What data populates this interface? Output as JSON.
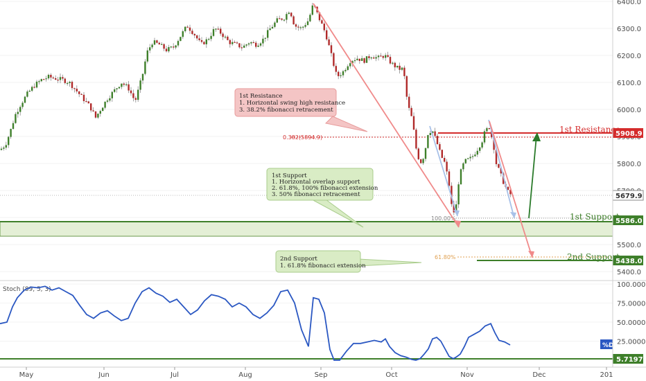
{
  "chart_data": [
    {
      "type": "candlestick",
      "ylim": [
        5380,
        6410
      ],
      "y_ticks": [
        "6400.0",
        "6300.0",
        "6200.0",
        "6100.0",
        "6000.0",
        "5900.0",
        "5800.0",
        "5700.0",
        "5600.0",
        "5500.0",
        "5400.0"
      ],
      "x_ticks": [
        "May",
        "Jun",
        "Jul",
        "Aug",
        "Sep",
        "Oct",
        "Nov",
        "Dec",
        "201"
      ],
      "price_path": [
        [
          0,
          5850
        ],
        [
          8,
          5870
        ],
        [
          15,
          5920
        ],
        [
          22,
          5980
        ],
        [
          30,
          6020
        ],
        [
          40,
          6060
        ],
        [
          50,
          6090
        ],
        [
          60,
          6110
        ],
        [
          70,
          6120
        ],
        [
          80,
          6115
        ],
        [
          90,
          6110
        ],
        [
          100,
          6100
        ],
        [
          110,
          6070
        ],
        [
          120,
          6040
        ],
        [
          130,
          6010
        ],
        [
          138,
          5970
        ],
        [
          145,
          6000
        ],
        [
          155,
          6040
        ],
        [
          165,
          6070
        ],
        [
          175,
          6100
        ],
        [
          185,
          6080
        ],
        [
          195,
          6030
        ],
        [
          205,
          6120
        ],
        [
          212,
          6210
        ],
        [
          220,
          6250
        ],
        [
          230,
          6240
        ],
        [
          240,
          6220
        ],
        [
          250,
          6230
        ],
        [
          260,
          6270
        ],
        [
          270,
          6310
        ],
        [
          280,
          6280
        ],
        [
          290,
          6240
        ],
        [
          300,
          6260
        ],
        [
          310,
          6300
        ],
        [
          320,
          6280
        ],
        [
          330,
          6250
        ],
        [
          340,
          6240
        ],
        [
          350,
          6230
        ],
        [
          360,
          6250
        ],
        [
          370,
          6240
        ],
        [
          380,
          6260
        ],
        [
          390,
          6300
        ],
        [
          400,
          6330
        ],
        [
          410,
          6340
        ],
        [
          418,
          6370
        ],
        [
          425,
          6310
        ],
        [
          435,
          6300
        ],
        [
          445,
          6330
        ],
        [
          452,
          6390
        ],
        [
          460,
          6340
        ],
        [
          470,
          6280
        ],
        [
          478,
          6200
        ],
        [
          486,
          6120
        ],
        [
          495,
          6140
        ],
        [
          505,
          6180
        ],
        [
          515,
          6190
        ],
        [
          525,
          6180
        ],
        [
          535,
          6200
        ],
        [
          545,
          6190
        ],
        [
          555,
          6200
        ],
        [
          565,
          6170
        ],
        [
          575,
          6150
        ],
        [
          582,
          6150
        ],
        [
          588,
          6020
        ],
        [
          595,
          5960
        ],
        [
          600,
          5860
        ],
        [
          606,
          5800
        ],
        [
          612,
          5830
        ],
        [
          618,
          5920
        ],
        [
          624,
          5920
        ],
        [
          630,
          5880
        ],
        [
          636,
          5830
        ],
        [
          642,
          5800
        ],
        [
          648,
          5720
        ],
        [
          653,
          5610
        ],
        [
          658,
          5640
        ],
        [
          662,
          5740
        ],
        [
          667,
          5790
        ],
        [
          672,
          5810
        ],
        [
          680,
          5820
        ],
        [
          688,
          5850
        ],
        [
          695,
          5880
        ],
        [
          700,
          5920
        ],
        [
          706,
          5935
        ],
        [
          712,
          5870
        ],
        [
          716,
          5800
        ],
        [
          722,
          5760
        ],
        [
          728,
          5720
        ],
        [
          734,
          5690
        ],
        [
          740,
          5679.9
        ]
      ],
      "stoch_path": [
        [
          0,
          48
        ],
        [
          10,
          50
        ],
        [
          18,
          70
        ],
        [
          25,
          82
        ],
        [
          35,
          92
        ],
        [
          45,
          96
        ],
        [
          55,
          95
        ],
        [
          65,
          97
        ],
        [
          75,
          92
        ],
        [
          85,
          95
        ],
        [
          95,
          90
        ],
        [
          105,
          85
        ],
        [
          115,
          72
        ],
        [
          125,
          60
        ],
        [
          135,
          55
        ],
        [
          145,
          62
        ],
        [
          155,
          65
        ],
        [
          165,
          58
        ],
        [
          175,
          52
        ],
        [
          185,
          55
        ],
        [
          195,
          75
        ],
        [
          205,
          90
        ],
        [
          215,
          95
        ],
        [
          225,
          88
        ],
        [
          235,
          84
        ],
        [
          245,
          76
        ],
        [
          255,
          80
        ],
        [
          265,
          70
        ],
        [
          275,
          60
        ],
        [
          285,
          66
        ],
        [
          295,
          78
        ],
        [
          305,
          86
        ],
        [
          315,
          84
        ],
        [
          325,
          80
        ],
        [
          335,
          70
        ],
        [
          345,
          75
        ],
        [
          355,
          70
        ],
        [
          365,
          60
        ],
        [
          375,
          55
        ],
        [
          385,
          62
        ],
        [
          395,
          72
        ],
        [
          405,
          90
        ],
        [
          415,
          92
        ],
        [
          425,
          75
        ],
        [
          435,
          40
        ],
        [
          445,
          18
        ],
        [
          452,
          82
        ],
        [
          460,
          80
        ],
        [
          468,
          62
        ],
        [
          476,
          14
        ],
        [
          482,
          0
        ],
        [
          490,
          0
        ],
        [
          500,
          12
        ],
        [
          510,
          22
        ],
        [
          520,
          22
        ],
        [
          530,
          24
        ],
        [
          540,
          26
        ],
        [
          550,
          24
        ],
        [
          556,
          28
        ],
        [
          562,
          18
        ],
        [
          570,
          10
        ],
        [
          578,
          6
        ],
        [
          586,
          4
        ],
        [
          594,
          1
        ],
        [
          600,
          0
        ],
        [
          606,
          2
        ],
        [
          612,
          8
        ],
        [
          618,
          15
        ],
        [
          624,
          28
        ],
        [
          630,
          30
        ],
        [
          636,
          25
        ],
        [
          642,
          15
        ],
        [
          648,
          5
        ],
        [
          654,
          2
        ],
        [
          658,
          4
        ],
        [
          664,
          8
        ],
        [
          670,
          18
        ],
        [
          676,
          30
        ],
        [
          684,
          34
        ],
        [
          692,
          38
        ],
        [
          700,
          45
        ],
        [
          708,
          48
        ],
        [
          714,
          36
        ],
        [
          720,
          26
        ],
        [
          728,
          24
        ],
        [
          736,
          20
        ]
      ]
    }
  ],
  "price_axis": {
    "ticks": [
      "6400.0",
      "6300.0",
      "6200.0",
      "6100.0",
      "6000.0",
      "5900.0",
      "5800.0",
      "5700.0",
      "5600.0",
      "5500.0",
      "5400.0"
    ]
  },
  "time_axis": {
    "ticks": [
      "May",
      "Jun",
      "Jul",
      "Aug",
      "Sep",
      "Oct",
      "Nov",
      "Dec",
      "201"
    ]
  },
  "stoch_axis": {
    "title": "Stoch (89, 5, 3)",
    "ticks": [
      "100.0000",
      "75.0000",
      "50.0000",
      "25.0000"
    ],
    "level_badge": "5.7197",
    "pct_d_label": "%D"
  },
  "levels": {
    "resistance": {
      "label": "1st Resistance",
      "value": "5908.9",
      "fib_label": "0.382(5894.9)",
      "color": "#d42c2c"
    },
    "support1": {
      "label": "1st Support",
      "value": "5586.0",
      "fib_label": "100.00%",
      "color": "#3e7f2a"
    },
    "support2": {
      "label": "2nd Support",
      "value": "5438.0",
      "fib_label": "61.80%",
      "color": "#3e7f2a"
    },
    "current": {
      "value": "5679.9"
    }
  },
  "callouts": {
    "resistance": {
      "lines": [
        "1st Resistance",
        "1. Horizontal swing high resistance",
        "3. 38.2% fibonacci retracement"
      ]
    },
    "support1": {
      "lines": [
        "1st Support",
        "1. Horizontal overlap support",
        "2. 61.8%, 100% fibonacci extension",
        "3. 50% fibonacci retracement"
      ]
    },
    "support2": {
      "lines": [
        "2nd Support",
        "1. 61.8% fibonacci extension"
      ]
    }
  },
  "colors": {
    "up": "#3e7f2a",
    "down": "#b02a2a",
    "stoch": "#2a57c2",
    "resistance_box": "#f4c5c5",
    "support_box": "#d9ecc5"
  }
}
